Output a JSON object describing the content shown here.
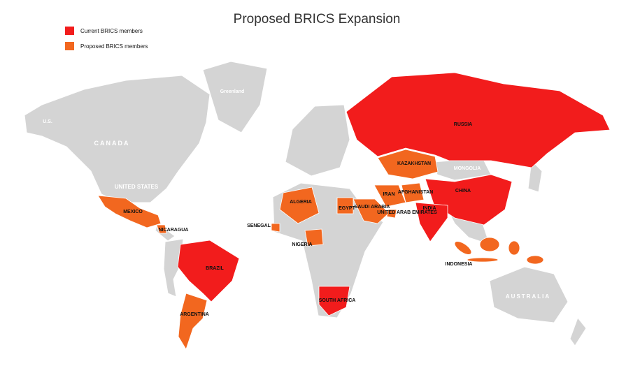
{
  "title": "Proposed BRICS Expansion",
  "legend": [
    {
      "label": "Current BRICS members",
      "color": "#f21c1c"
    },
    {
      "label": "Proposed BRICS members",
      "color": "#f2671f"
    }
  ],
  "labels": [
    {
      "text": "U.S."
    },
    {
      "text": "CANADA"
    },
    {
      "text": "Greenland"
    },
    {
      "text": "UNITED STATES"
    },
    {
      "text": "MEXICO"
    },
    {
      "text": "NICARAGUA"
    },
    {
      "text": "BRAZIL"
    },
    {
      "text": "ARGENTINA"
    },
    {
      "text": "SENEGAL"
    },
    {
      "text": "NIGERIA"
    },
    {
      "text": "ALGERIA"
    },
    {
      "text": "EGYPT"
    },
    {
      "text": "SAUDI ARABIA"
    },
    {
      "text": "UNITED ARAB EMIRATES"
    },
    {
      "text": "IRAN"
    },
    {
      "text": "AFGHANISTAN"
    },
    {
      "text": "KAZAKHSTAN"
    },
    {
      "text": "RUSSIA"
    },
    {
      "text": "CHINA"
    },
    {
      "text": "INDIA"
    },
    {
      "text": "INDONESIA"
    },
    {
      "text": "SOUTH AFRICA"
    },
    {
      "text": "MONGOLIA"
    },
    {
      "text": "AUSTRALIA"
    }
  ]
}
